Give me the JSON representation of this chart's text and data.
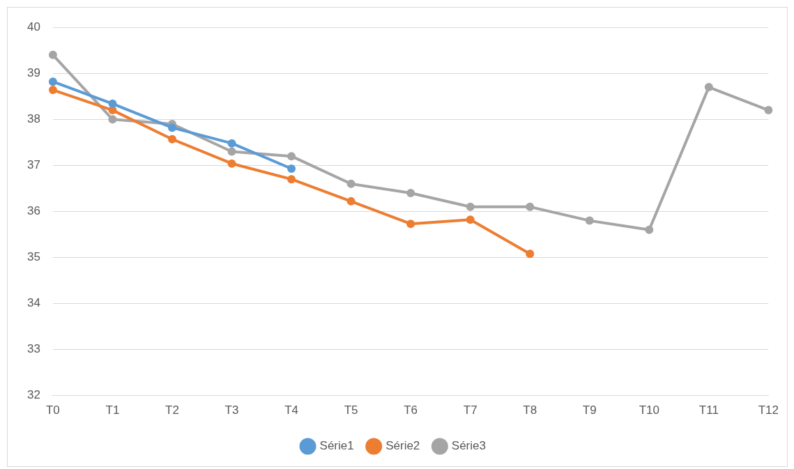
{
  "chart_data": {
    "type": "line",
    "categories": [
      "T0",
      "T1",
      "T2",
      "T3",
      "T4",
      "T5",
      "T6",
      "T7",
      "T8",
      "T9",
      "T10",
      "T11",
      "T12"
    ],
    "series": [
      {
        "name": "Série1",
        "color": "#5b9bd5",
        "values": [
          38.82,
          38.34,
          37.82,
          37.48,
          36.93,
          null,
          null,
          null,
          null,
          null,
          null,
          null,
          null
        ]
      },
      {
        "name": "Série2",
        "color": "#ed7d31",
        "values": [
          38.64,
          38.2,
          37.57,
          37.04,
          36.7,
          36.22,
          35.73,
          35.82,
          35.08,
          null,
          null,
          null,
          null
        ]
      },
      {
        "name": "Série3",
        "color": "#a5a5a5",
        "values": [
          39.4,
          38.0,
          37.9,
          37.3,
          37.2,
          36.6,
          36.4,
          36.1,
          36.1,
          35.8,
          35.6,
          38.7,
          38.2
        ]
      }
    ],
    "ylim": [
      32,
      40
    ],
    "yticks": [
      32,
      33,
      34,
      35,
      36,
      37,
      38,
      39,
      40
    ],
    "grid": "y",
    "legend": "bottom",
    "marker": "circle",
    "line_style": "solid"
  }
}
